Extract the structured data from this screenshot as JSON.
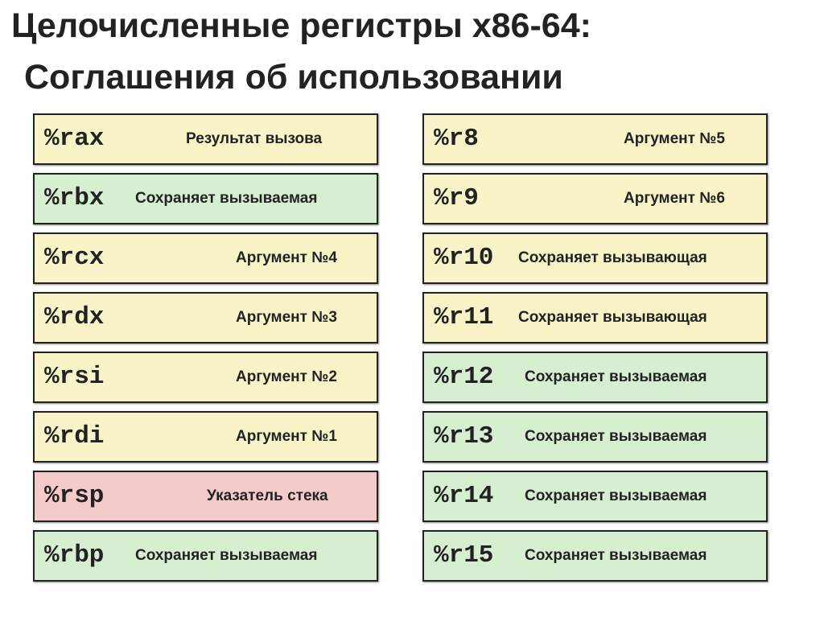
{
  "title_line1": "Целочисленные регистры x86-64:",
  "title_line2": "Соглашения об использовании",
  "colors": {
    "caller_arg": "#f8f4c8",
    "callee_saved": "#d5efd0",
    "stack": "#f4caca"
  },
  "left": [
    {
      "reg": "%rax",
      "label": "Результат вызова"
    },
    {
      "reg": "%rbx",
      "label": "Сохраняет вызываемая"
    },
    {
      "reg": "%rcx",
      "label": "Аргумент №4"
    },
    {
      "reg": "%rdx",
      "label": "Аргумент №3"
    },
    {
      "reg": "%rsi",
      "label": "Аргумент №2"
    },
    {
      "reg": "%rdi",
      "label": "Аргумент №1"
    },
    {
      "reg": "%rsp",
      "label": "Указатель стека"
    },
    {
      "reg": "%rbp",
      "label": "Сохраняет вызываемая"
    }
  ],
  "right": [
    {
      "reg": "%r8",
      "label": "Аргумент №5"
    },
    {
      "reg": "%r9",
      "label": "Аргумент №6"
    },
    {
      "reg": "%r10",
      "label": "Сохраняет вызывающая"
    },
    {
      "reg": "%r11",
      "label": "Сохраняет вызывающая"
    },
    {
      "reg": "%r12",
      "label": "Сохраняет вызываемая"
    },
    {
      "reg": "%r13",
      "label": "Сохраняет вызываемая"
    },
    {
      "reg": "%r14",
      "label": "Сохраняет вызываемая"
    },
    {
      "reg": "%r15",
      "label": "Сохраняет вызываемая"
    }
  ]
}
